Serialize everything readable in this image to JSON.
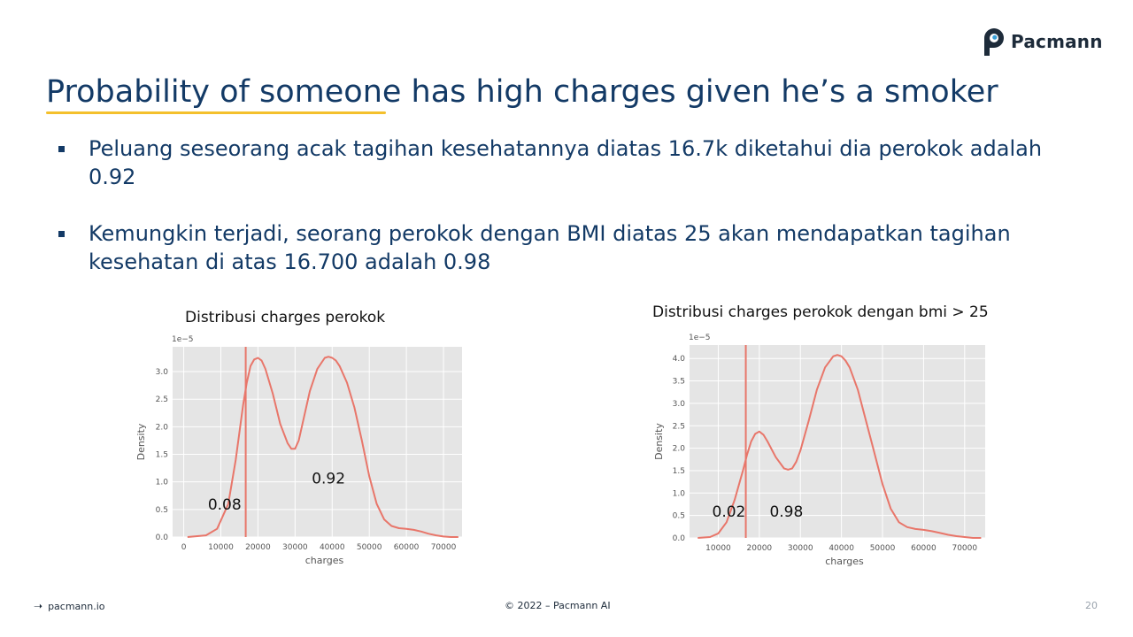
{
  "brand": {
    "name": "Pacmann",
    "icon": "pacmann-logo-icon"
  },
  "slide": {
    "title": "Probability of someone has high charges given he’s a smoker",
    "bullets": [
      "Peluang seseorang acak tagihan kesehatannya diatas 16.7k diketahui dia perokok adalah 0.92",
      "Kemungkin terjadi, seorang perokok dengan BMI diatas 25 akan mendapatkan tagihan kesehatan di atas 16.700 adalah 0.98"
    ]
  },
  "colors": {
    "title": "#133a66",
    "accent": "#f4c02c",
    "curve": "#e8766a",
    "plot_bg": "#e5e5e5"
  },
  "chart_data": [
    {
      "type": "line",
      "title": "Distribusi charges perokok",
      "xlabel": "charges",
      "ylabel": "Density",
      "y_scale_label": "1e−5",
      "xlim": [
        -3000,
        75000
      ],
      "ylim": [
        0,
        3.45
      ],
      "xticks": [
        0,
        10000,
        20000,
        30000,
        40000,
        50000,
        60000,
        70000
      ],
      "yticks": [
        0.0,
        0.5,
        1.0,
        1.5,
        2.0,
        2.5,
        3.0
      ],
      "ytick_labels": [
        "0.0",
        "0.5",
        "1.0",
        "1.5",
        "2.0",
        "2.5",
        "3.0"
      ],
      "grid": true,
      "series": [
        {
          "x": [
            1000,
            6000,
            9000,
            12000,
            14000,
            16000,
            17000,
            18000,
            19000,
            20000,
            21000,
            22000,
            24000,
            26000,
            28000,
            29000,
            30000,
            31000,
            32000,
            34000,
            36000,
            38000,
            39000,
            40000,
            41000,
            42000,
            44000,
            46000,
            48000,
            50000,
            52000,
            54000,
            56000,
            58000,
            60000,
            62000,
            64000,
            66000,
            68000,
            70000,
            72000,
            74000
          ],
          "y": [
            0.0,
            0.03,
            0.15,
            0.6,
            1.4,
            2.4,
            2.8,
            3.1,
            3.22,
            3.25,
            3.2,
            3.05,
            2.6,
            2.05,
            1.7,
            1.6,
            1.6,
            1.75,
            2.05,
            2.65,
            3.05,
            3.25,
            3.27,
            3.25,
            3.2,
            3.1,
            2.8,
            2.35,
            1.75,
            1.1,
            0.6,
            0.32,
            0.2,
            0.16,
            0.15,
            0.13,
            0.1,
            0.06,
            0.03,
            0.01,
            0.0,
            0.0
          ]
        }
      ],
      "vline_x": 16700,
      "annotations": [
        {
          "text": "0.08",
          "x": 6500,
          "y": 0.5
        },
        {
          "text": "0.92",
          "x": 34500,
          "y": 0.97
        }
      ]
    },
    {
      "type": "line",
      "title": "Distribusi charges perokok dengan bmi > 25",
      "xlabel": "charges",
      "ylabel": "Density",
      "y_scale_label": "1e−5",
      "xlim": [
        3000,
        75000
      ],
      "ylim": [
        0,
        4.3
      ],
      "xticks": [
        10000,
        20000,
        30000,
        40000,
        50000,
        60000,
        70000
      ],
      "yticks": [
        0.0,
        0.5,
        1.0,
        1.5,
        2.0,
        2.5,
        3.0,
        3.5,
        4.0
      ],
      "ytick_labels": [
        "0.0",
        "0.5",
        "1.0",
        "1.5",
        "2.0",
        "2.5",
        "3.0",
        "3.5",
        "4.0"
      ],
      "grid": true,
      "series": [
        {
          "x": [
            5000,
            8000,
            10000,
            12000,
            14000,
            16000,
            17000,
            18000,
            19000,
            20000,
            21000,
            22000,
            24000,
            26000,
            27000,
            28000,
            29000,
            30000,
            32000,
            34000,
            36000,
            38000,
            39000,
            40000,
            41000,
            42000,
            44000,
            46000,
            48000,
            50000,
            52000,
            54000,
            56000,
            58000,
            60000,
            62000,
            64000,
            66000,
            68000,
            70000,
            72000,
            74000
          ],
          "y": [
            0.0,
            0.02,
            0.1,
            0.35,
            0.85,
            1.5,
            1.85,
            2.15,
            2.32,
            2.37,
            2.3,
            2.15,
            1.8,
            1.55,
            1.52,
            1.55,
            1.7,
            1.95,
            2.6,
            3.3,
            3.8,
            4.05,
            4.08,
            4.05,
            3.95,
            3.8,
            3.3,
            2.6,
            1.9,
            1.2,
            0.65,
            0.35,
            0.24,
            0.2,
            0.18,
            0.15,
            0.11,
            0.07,
            0.04,
            0.02,
            0.0,
            0.0
          ]
        }
      ],
      "vline_x": 16700,
      "annotations": [
        {
          "text": "0.02",
          "x": 8500,
          "y": 0.47
        },
        {
          "text": "0.98",
          "x": 22500,
          "y": 0.47
        }
      ]
    }
  ],
  "footer": {
    "left": "pacmann.io",
    "center": "© 2022 – Pacmann AI",
    "page": "20"
  }
}
